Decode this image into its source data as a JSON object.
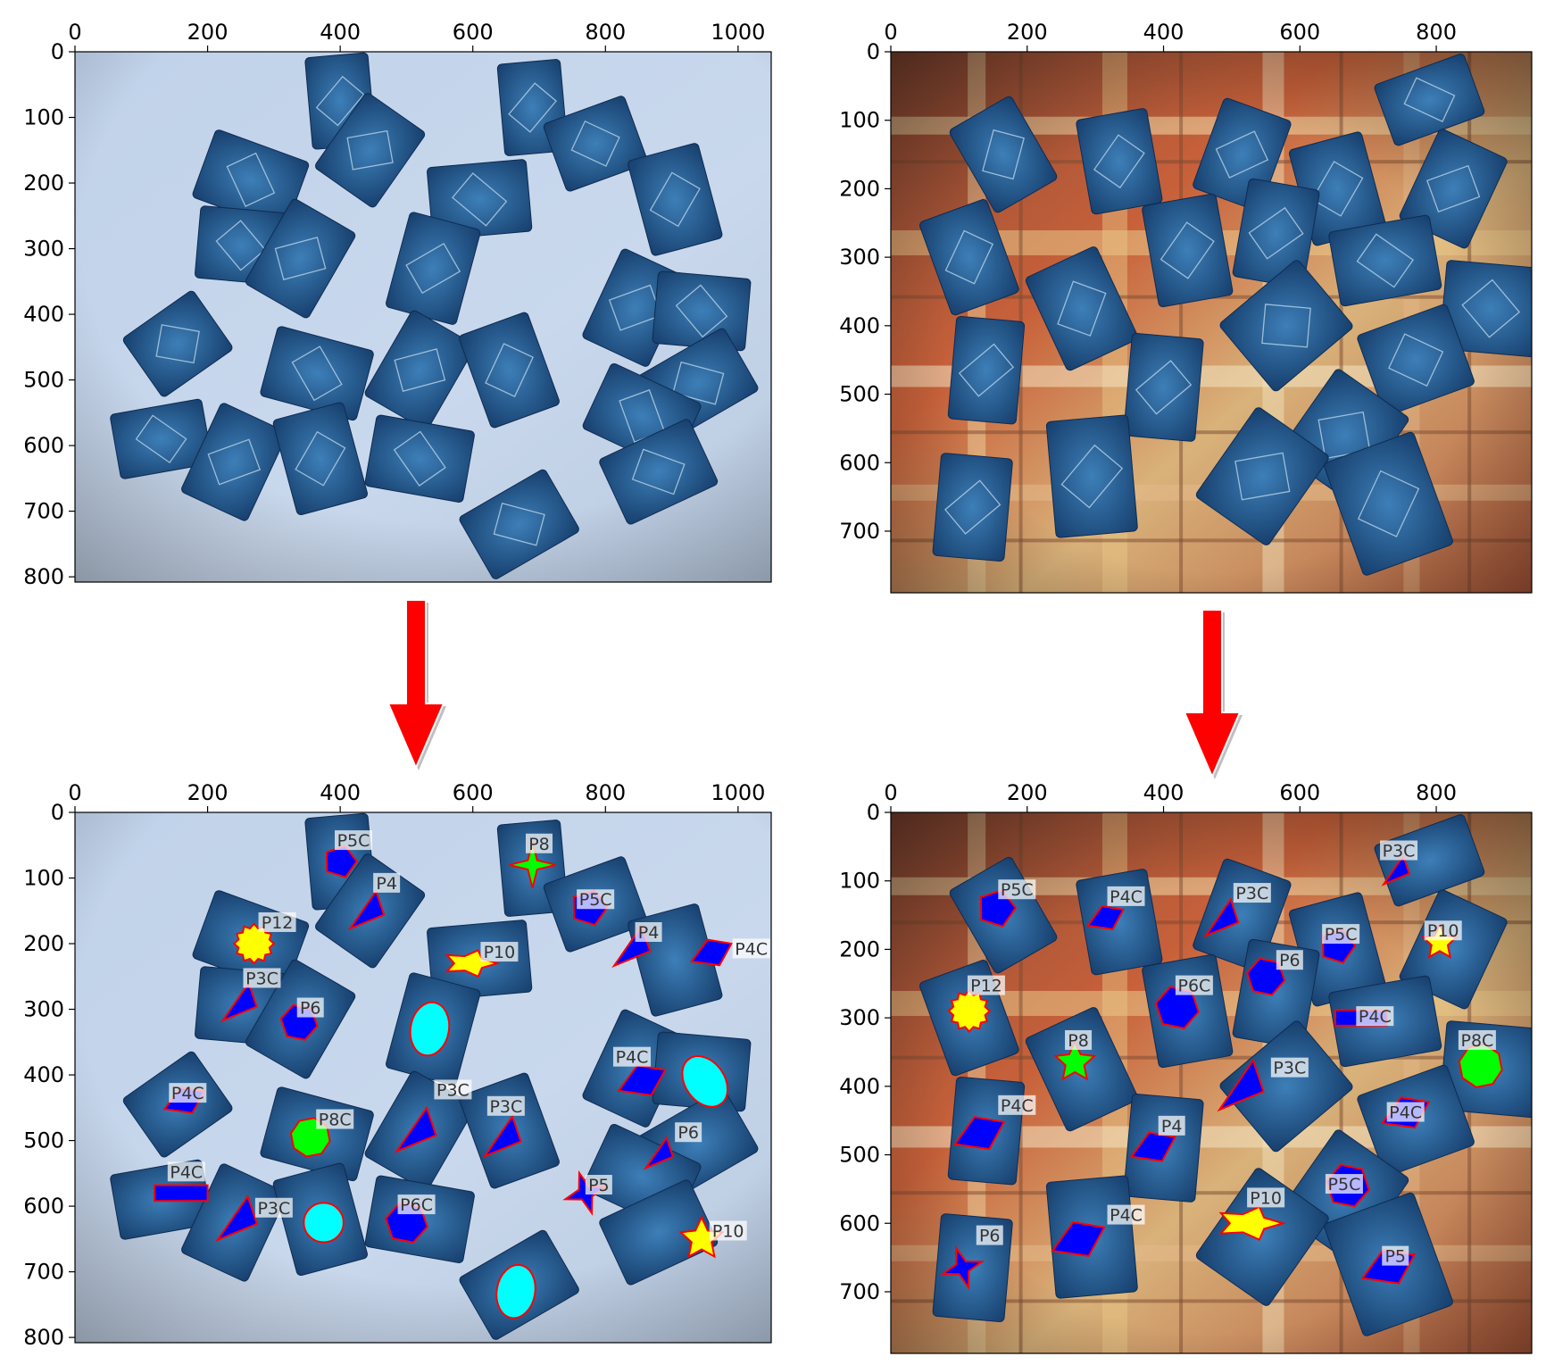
{
  "panels": [
    {
      "id": "top-left",
      "axes": {
        "x_ticks": [
          "0",
          "200",
          "400",
          "600",
          "800",
          "1000"
        ],
        "y_ticks": [
          "0",
          "100",
          "200",
          "300",
          "400",
          "500",
          "600",
          "700",
          "800"
        ],
        "xlim": [
          0,
          1050
        ],
        "ylim": [
          0,
          808
        ]
      },
      "background": "light-blue tabletop",
      "annotated": false
    },
    {
      "id": "top-right",
      "axes": {
        "x_ticks": [
          "0",
          "200",
          "400",
          "600",
          "800"
        ],
        "y_ticks": [
          "0",
          "100",
          "200",
          "300",
          "400",
          "500",
          "600",
          "700"
        ],
        "xlim": [
          0,
          940
        ],
        "ylim": [
          0,
          790
        ]
      },
      "background": "plaid tablecloth",
      "annotated": false
    },
    {
      "id": "bottom-left",
      "axes": {
        "x_ticks": [
          "0",
          "200",
          "400",
          "600",
          "800",
          "1000"
        ],
        "y_ticks": [
          "0",
          "100",
          "200",
          "300",
          "400",
          "500",
          "600",
          "700",
          "800"
        ],
        "xlim": [
          0,
          1050
        ],
        "ylim": [
          0,
          808
        ]
      },
      "background": "light-blue tabletop",
      "annotated": true,
      "labels": [
        {
          "text": "P5C",
          "x": 420,
          "y": 45
        },
        {
          "text": "P4",
          "x": 470,
          "y": 110
        },
        {
          "text": "P8",
          "x": 700,
          "y": 50
        },
        {
          "text": "P5C",
          "x": 785,
          "y": 135
        },
        {
          "text": "P12",
          "x": 305,
          "y": 170
        },
        {
          "text": "P4",
          "x": 865,
          "y": 185
        },
        {
          "text": "P10",
          "x": 640,
          "y": 215
        },
        {
          "text": "P4C",
          "x": 1020,
          "y": 210
        },
        {
          "text": "P3C",
          "x": 282,
          "y": 255
        },
        {
          "text": "P6",
          "x": 355,
          "y": 300
        },
        {
          "text": "P4C",
          "x": 840,
          "y": 375
        },
        {
          "text": "P4C",
          "x": 170,
          "y": 430
        },
        {
          "text": "P3C",
          "x": 570,
          "y": 425
        },
        {
          "text": "P3C",
          "x": 650,
          "y": 450
        },
        {
          "text": "P8C",
          "x": 392,
          "y": 470
        },
        {
          "text": "P6",
          "x": 925,
          "y": 490
        },
        {
          "text": "P4C",
          "x": 168,
          "y": 550
        },
        {
          "text": "P5",
          "x": 790,
          "y": 570
        },
        {
          "text": "P3C",
          "x": 300,
          "y": 605
        },
        {
          "text": "P6C",
          "x": 515,
          "y": 600
        },
        {
          "text": "P10",
          "x": 985,
          "y": 640
        }
      ]
    },
    {
      "id": "bottom-right",
      "axes": {
        "x_ticks": [
          "0",
          "200",
          "400",
          "600",
          "800"
        ],
        "y_ticks": [
          "0",
          "100",
          "200",
          "300",
          "400",
          "500",
          "600",
          "700"
        ],
        "xlim": [
          0,
          940
        ],
        "ylim": [
          0,
          790
        ]
      },
      "background": "plaid tablecloth",
      "annotated": true,
      "labels": [
        {
          "text": "P3C",
          "x": 745,
          "y": 58
        },
        {
          "text": "P5C",
          "x": 185,
          "y": 115
        },
        {
          "text": "P4C",
          "x": 345,
          "y": 125
        },
        {
          "text": "P3C",
          "x": 530,
          "y": 120
        },
        {
          "text": "P5C",
          "x": 660,
          "y": 180
        },
        {
          "text": "P10",
          "x": 810,
          "y": 175
        },
        {
          "text": "P6",
          "x": 585,
          "y": 218
        },
        {
          "text": "P12",
          "x": 140,
          "y": 255
        },
        {
          "text": "P6C",
          "x": 445,
          "y": 255
        },
        {
          "text": "P4C",
          "x": 710,
          "y": 300
        },
        {
          "text": "P8",
          "x": 275,
          "y": 335
        },
        {
          "text": "P8C",
          "x": 860,
          "y": 335
        },
        {
          "text": "P3C",
          "x": 585,
          "y": 375
        },
        {
          "text": "P4C",
          "x": 185,
          "y": 430
        },
        {
          "text": "P4C",
          "x": 755,
          "y": 440
        },
        {
          "text": "P4",
          "x": 412,
          "y": 460
        },
        {
          "text": "P5C",
          "x": 665,
          "y": 545
        },
        {
          "text": "P10",
          "x": 550,
          "y": 565
        },
        {
          "text": "P4C",
          "x": 345,
          "y": 590
        },
        {
          "text": "P6",
          "x": 145,
          "y": 620
        },
        {
          "text": "P5",
          "x": 740,
          "y": 650
        }
      ]
    }
  ],
  "arrows": [
    "down-arrow-left",
    "down-arrow-right"
  ],
  "colors": {
    "arrow": "#ff0000",
    "blue_fill": "#0000ff",
    "green_fill": "#00ff00",
    "yellow_fill": "#ffff00",
    "cyan_fill": "#00ffff",
    "outline": "#ff0000",
    "card": "#1e4f86",
    "table_blue": "#c6d6ea"
  }
}
